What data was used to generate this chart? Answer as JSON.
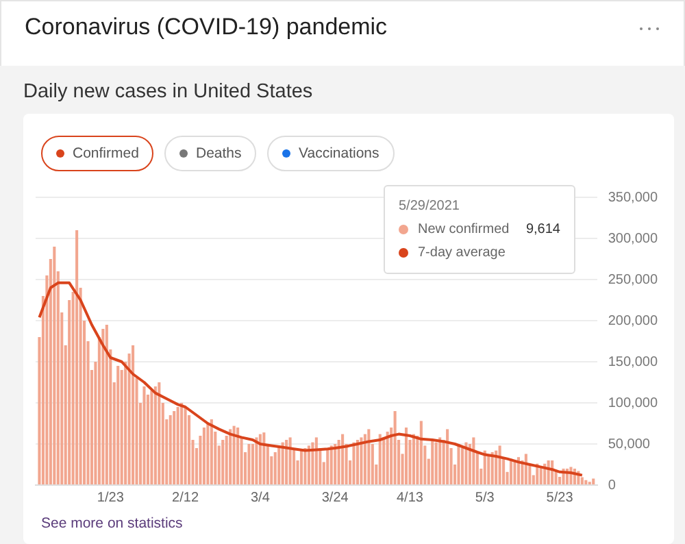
{
  "chart_data": {
    "type": "bar",
    "title": "Coronavirus (COVID-19) pandemic",
    "subtitle": "Daily new cases in United States",
    "x": [
      "2021-01-04",
      "2021-01-05",
      "2021-01-06",
      "2021-01-07",
      "2021-01-08",
      "2021-01-09",
      "2021-01-10",
      "2021-01-11",
      "2021-01-12",
      "2021-01-13",
      "2021-01-14",
      "2021-01-15",
      "2021-01-16",
      "2021-01-17",
      "2021-01-18",
      "2021-01-19",
      "2021-01-20",
      "2021-01-21",
      "2021-01-22",
      "2021-01-23",
      "2021-01-24",
      "2021-01-25",
      "2021-01-26",
      "2021-01-27",
      "2021-01-28",
      "2021-01-29",
      "2021-01-30",
      "2021-01-31",
      "2021-02-01",
      "2021-02-02",
      "2021-02-03",
      "2021-02-04",
      "2021-02-05",
      "2021-02-06",
      "2021-02-07",
      "2021-02-08",
      "2021-02-09",
      "2021-02-10",
      "2021-02-11",
      "2021-02-12",
      "2021-02-13",
      "2021-02-14",
      "2021-02-15",
      "2021-02-16",
      "2021-02-17",
      "2021-02-18",
      "2021-02-19",
      "2021-02-20",
      "2021-02-21",
      "2021-02-22",
      "2021-02-23",
      "2021-02-24",
      "2021-02-25",
      "2021-02-26",
      "2021-02-27",
      "2021-02-28",
      "2021-03-01",
      "2021-03-02",
      "2021-03-03",
      "2021-03-04",
      "2021-03-05",
      "2021-03-06",
      "2021-03-07",
      "2021-03-08",
      "2021-03-09",
      "2021-03-10",
      "2021-03-11",
      "2021-03-12",
      "2021-03-13",
      "2021-03-14",
      "2021-03-15",
      "2021-03-16",
      "2021-03-17",
      "2021-03-18",
      "2021-03-19",
      "2021-03-20",
      "2021-03-21",
      "2021-03-22",
      "2021-03-23",
      "2021-03-24",
      "2021-03-25",
      "2021-03-26",
      "2021-03-27",
      "2021-03-28",
      "2021-03-29",
      "2021-03-30",
      "2021-03-31",
      "2021-04-01",
      "2021-04-02",
      "2021-04-03",
      "2021-04-04",
      "2021-04-05",
      "2021-04-06",
      "2021-04-07",
      "2021-04-08",
      "2021-04-09",
      "2021-04-10",
      "2021-04-11",
      "2021-04-12",
      "2021-04-13",
      "2021-04-14",
      "2021-04-15",
      "2021-04-16",
      "2021-04-17",
      "2021-04-18",
      "2021-04-19",
      "2021-04-20",
      "2021-04-21",
      "2021-04-22",
      "2021-04-23",
      "2021-04-24",
      "2021-04-25",
      "2021-04-26",
      "2021-04-27",
      "2021-04-28",
      "2021-04-29",
      "2021-04-30",
      "2021-05-01",
      "2021-05-02",
      "2021-05-03",
      "2021-05-04",
      "2021-05-05",
      "2021-05-06",
      "2021-05-07",
      "2021-05-08",
      "2021-05-09",
      "2021-05-10",
      "2021-05-11",
      "2021-05-12",
      "2021-05-13",
      "2021-05-14",
      "2021-05-15",
      "2021-05-16",
      "2021-05-17",
      "2021-05-18",
      "2021-05-19",
      "2021-05-20",
      "2021-05-21",
      "2021-05-22",
      "2021-05-23",
      "2021-05-24",
      "2021-05-25",
      "2021-05-26",
      "2021-05-27",
      "2021-05-28",
      "2021-05-29",
      "2021-05-30",
      "2021-05-31",
      "2021-06-01"
    ],
    "series": [
      {
        "color": "#f2a68f",
        "values": [
          180000,
          230000,
          255000,
          275000,
          290000,
          260000,
          210000,
          170000,
          225000,
          235000,
          310000,
          240000,
          200000,
          175000,
          140000,
          150000,
          180000,
          190000,
          195000,
          165000,
          125000,
          145000,
          140000,
          150000,
          160000,
          170000,
          130000,
          100000,
          120000,
          110000,
          115000,
          120000,
          125000,
          100000,
          80000,
          85000,
          90000,
          95000,
          100000,
          95000,
          85000,
          55000,
          45000,
          60000,
          70000,
          75000,
          80000,
          65000,
          48000,
          55000,
          60000,
          68000,
          72000,
          70000,
          58000,
          40000,
          50000,
          50000,
          58000,
          62000,
          64000,
          50000,
          35000,
          40000,
          48000,
          52000,
          55000,
          58000,
          45000,
          30000,
          42000,
          45000,
          48000,
          52000,
          58000,
          45000,
          28000,
          45000,
          48000,
          50000,
          55000,
          62000,
          50000,
          30000,
          52000,
          55000,
          58000,
          62000,
          68000,
          50000,
          25000,
          62000,
          58000,
          65000,
          70000,
          90000,
          55000,
          38000,
          70000,
          55000,
          62000,
          60000,
          78000,
          48000,
          32000,
          55000,
          52000,
          58000,
          55000,
          68000,
          45000,
          25000,
          50000,
          45000,
          52000,
          50000,
          58000,
          40000,
          20000,
          42000,
          35000,
          40000,
          42000,
          48000,
          32000,
          16000,
          32000,
          30000,
          34000,
          30000,
          38000,
          24000,
          12000,
          26000,
          22000,
          26000,
          30000,
          30000,
          17000,
          10000,
          20000,
          20000,
          22000,
          20000,
          17000,
          9614,
          6000,
          4000,
          8000
        ]
      },
      {
        "type": "line",
        "color": "#d9441c",
        "x": [
          "2021-01-04",
          "2021-01-07",
          "2021-01-09",
          "2021-01-12",
          "2021-01-15",
          "2021-01-18",
          "2021-01-21",
          "2021-01-23",
          "2021-01-26",
          "2021-01-29",
          "2021-02-01",
          "2021-02-04",
          "2021-02-07",
          "2021-02-10",
          "2021-02-12",
          "2021-02-15",
          "2021-02-18",
          "2021-02-21",
          "2021-02-24",
          "2021-02-27",
          "2021-03-02",
          "2021-03-04",
          "2021-03-07",
          "2021-03-10",
          "2021-03-13",
          "2021-03-16",
          "2021-03-19",
          "2021-03-22",
          "2021-03-24",
          "2021-03-27",
          "2021-03-30",
          "2021-04-02",
          "2021-04-05",
          "2021-04-08",
          "2021-04-10",
          "2021-04-13",
          "2021-04-16",
          "2021-04-19",
          "2021-04-22",
          "2021-04-25",
          "2021-04-28",
          "2021-05-01",
          "2021-05-03",
          "2021-05-06",
          "2021-05-09",
          "2021-05-12",
          "2021-05-15",
          "2021-05-18",
          "2021-05-21",
          "2021-05-23",
          "2021-05-26",
          "2021-05-29"
        ],
        "values": [
          204000,
          240000,
          246000,
          246000,
          225000,
          195000,
          170000,
          155000,
          150000,
          135000,
          125000,
          112000,
          105000,
          98000,
          95000,
          85000,
          75000,
          68000,
          62000,
          58000,
          55000,
          50000,
          48000,
          46000,
          44000,
          42000,
          43000,
          44000,
          45000,
          47000,
          50000,
          53000,
          55000,
          60000,
          62000,
          60000,
          56000,
          55000,
          53000,
          50000,
          45000,
          40000,
          37000,
          35000,
          32000,
          28000,
          25000,
          22000,
          19000,
          16000,
          15000,
          12000
        ]
      }
    ],
    "xlim": [
      "2021-01-03",
      "2021-06-02"
    ],
    "xticks": [
      {
        "value": "2021-01-23",
        "label": "1/23"
      },
      {
        "value": "2021-02-12",
        "label": "2/12"
      },
      {
        "value": "2021-03-04",
        "label": "3/4"
      },
      {
        "value": "2021-03-24",
        "label": "3/24"
      },
      {
        "value": "2021-04-13",
        "label": "4/13"
      },
      {
        "value": "2021-05-03",
        "label": "5/3"
      },
      {
        "value": "2021-05-23",
        "label": "5/23"
      }
    ],
    "ylim": [
      0,
      350000
    ],
    "yticks": [
      0,
      {
        "value": 50000,
        "label": "50,000"
      },
      {
        "value": 100000,
        "label": "100,000"
      },
      {
        "value": 150000,
        "label": "150,000"
      },
      {
        "value": 200000,
        "label": "200,000"
      },
      {
        "value": 250000,
        "label": "250,000"
      },
      {
        "value": 300000,
        "label": "300,000"
      },
      {
        "value": 350000,
        "label": "350,000"
      }
    ],
    "grid": "y",
    "legend": false,
    "marker": "none",
    "annotations": [
      "Confirmed",
      "Deaths",
      "Vaccinations",
      "5/29/2021",
      "New confirmed",
      "9,614",
      "7-day average",
      "See more on statistics"
    ]
  }
}
